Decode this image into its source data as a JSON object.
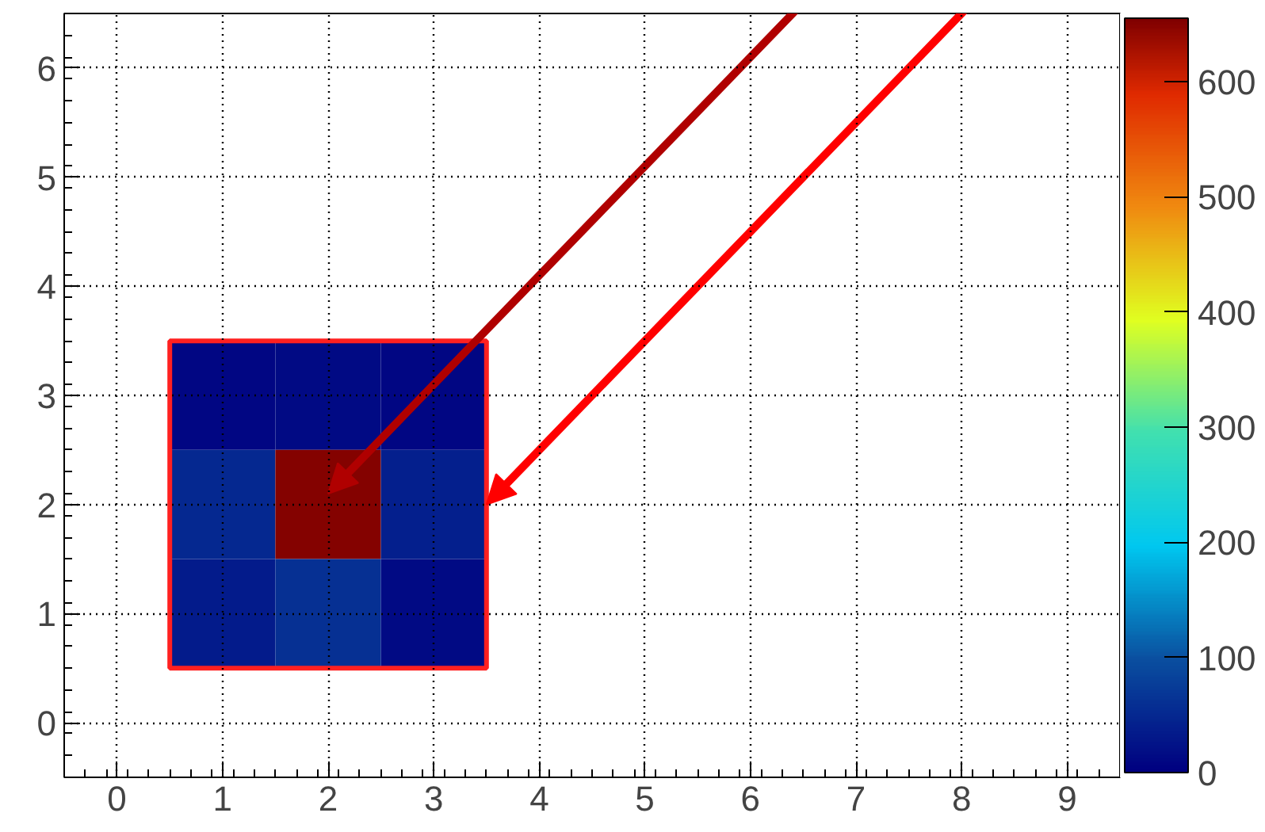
{
  "chart_data": {
    "type": "heatmap",
    "x": [
      1,
      2,
      3
    ],
    "y": [
      3,
      2,
      1
    ],
    "cells": [
      [
        10,
        15,
        10
      ],
      [
        50,
        650,
        40
      ],
      [
        35,
        60,
        15
      ]
    ],
    "clim": [
      0,
      655
    ],
    "cticks": [
      0,
      100,
      200,
      300,
      400,
      500,
      600
    ],
    "xlim": [
      -0.5,
      9.5
    ],
    "xticks": [
      0,
      1,
      2,
      3,
      4,
      5,
      6,
      7,
      8,
      9
    ],
    "ylim": [
      -0.5,
      6.5
    ],
    "yticks": [
      0,
      1,
      2,
      3,
      4,
      5,
      6
    ],
    "grid": true
  }
}
